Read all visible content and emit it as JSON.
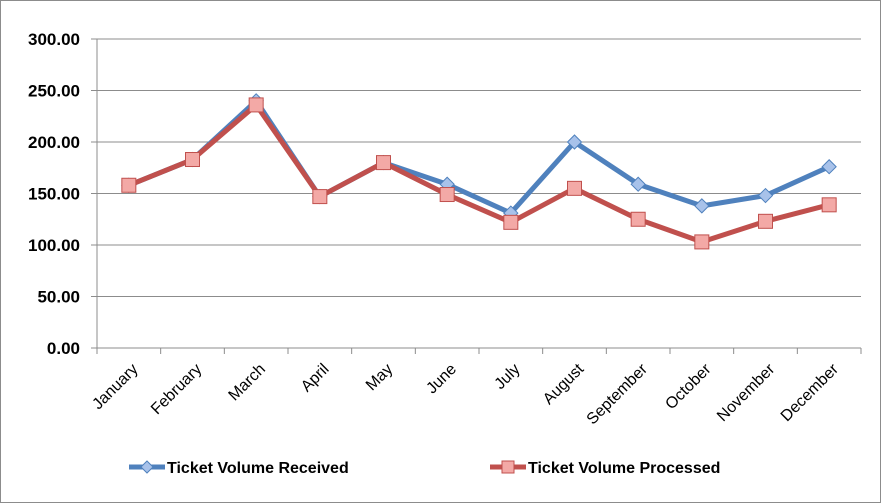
{
  "chart_data": {
    "type": "line",
    "categories": [
      "January",
      "February",
      "March",
      "April",
      "May",
      "June",
      "July",
      "August",
      "September",
      "October",
      "November",
      "December"
    ],
    "series": [
      {
        "name": "Ticket Volume Received",
        "values": [
          158,
          183,
          240,
          147,
          180,
          159,
          131,
          200,
          159,
          138,
          148,
          176
        ],
        "color": "#4f81bd",
        "marker": "diamond"
      },
      {
        "name": "Ticket Volume Processed",
        "values": [
          158,
          183,
          236,
          147,
          180,
          149,
          122,
          155,
          125,
          103,
          123,
          139
        ],
        "color": "#c0504d",
        "marker": "square"
      }
    ],
    "ylim": [
      0,
      300
    ],
    "yticks": [
      "0.00",
      "50.00",
      "100.00",
      "150.00",
      "200.00",
      "250.00",
      "300.00"
    ],
    "grid": true,
    "legend_position": "bottom"
  }
}
